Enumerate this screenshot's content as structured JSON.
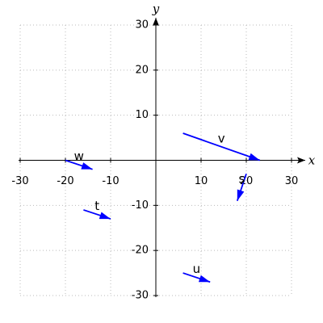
{
  "chart_data": {
    "type": "quiver",
    "x_label": "x",
    "y_label": "y",
    "xlim": [
      -30,
      30
    ],
    "ylim": [
      -30,
      30
    ],
    "xticks": [
      -30,
      -20,
      -10,
      10,
      20,
      30
    ],
    "yticks": [
      -30,
      -20,
      -10,
      10,
      20,
      30
    ],
    "grid": true,
    "color": "#0000ff",
    "label_color": "#ff0000",
    "vectors": [
      {
        "name": "v",
        "x": 6,
        "y": 6,
        "dx": 17,
        "dy": -6
      },
      {
        "name": "w",
        "x": -20,
        "y": 0,
        "dx": 6,
        "dy": -2
      },
      {
        "name": "t",
        "x": -16,
        "y": -11,
        "dx": 6,
        "dy": -2
      },
      {
        "name": "s",
        "x": 20,
        "y": -3,
        "dx": -2,
        "dy": -6
      },
      {
        "name": "u",
        "x": 6,
        "y": -25,
        "dx": 6,
        "dy": -2
      }
    ]
  }
}
